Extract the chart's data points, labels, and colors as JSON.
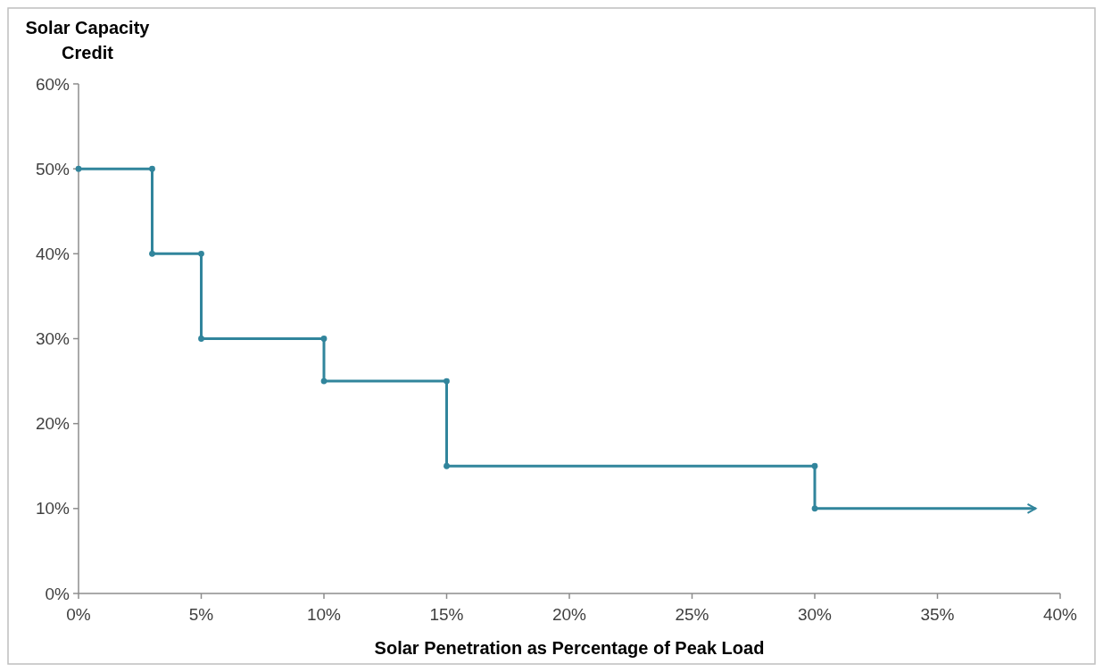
{
  "chart_data": {
    "type": "line",
    "ylabel": "Solar Capacity Credit",
    "xlabel": "Solar Penetration as Percentage of Peak Load",
    "xlim": [
      0,
      40
    ],
    "ylim": [
      0,
      60
    ],
    "xticks": [
      {
        "value": 0,
        "label": "0%"
      },
      {
        "value": 5,
        "label": "5%"
      },
      {
        "value": 10,
        "label": "10%"
      },
      {
        "value": 15,
        "label": "15%"
      },
      {
        "value": 20,
        "label": "20%"
      },
      {
        "value": 25,
        "label": "25%"
      },
      {
        "value": 30,
        "label": "30%"
      },
      {
        "value": 35,
        "label": "35%"
      },
      {
        "value": 40,
        "label": "40%"
      }
    ],
    "yticks": [
      {
        "value": 0,
        "label": "0%"
      },
      {
        "value": 10,
        "label": "10%"
      },
      {
        "value": 20,
        "label": "20%"
      },
      {
        "value": 30,
        "label": "30%"
      },
      {
        "value": 40,
        "label": "40%"
      },
      {
        "value": 50,
        "label": "50%"
      },
      {
        "value": 60,
        "label": "60%"
      }
    ],
    "marker": "circle",
    "line_style": "solid",
    "grid": false,
    "series": [
      {
        "color": "#31859c",
        "x": [
          0,
          3,
          3,
          5,
          5,
          10,
          10,
          15,
          15,
          30,
          30,
          39
        ],
        "values": [
          50,
          50,
          40,
          40,
          30,
          30,
          25,
          25,
          15,
          15,
          10,
          10
        ]
      }
    ]
  }
}
